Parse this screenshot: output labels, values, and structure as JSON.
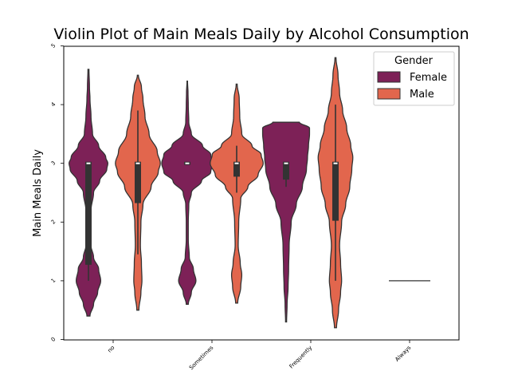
{
  "chart_data": {
    "type": "violin",
    "title": "Violin Plot of Main Meals Daily by Alcohol Consumption",
    "xlabel": "",
    "ylabel": "Main Meals Daily",
    "categories": [
      "no",
      "Sometimes",
      "Frequently",
      "Always"
    ],
    "ylim": [
      0,
      5
    ],
    "yticks": [
      "0",
      "1",
      "2",
      "3",
      "4",
      "5"
    ],
    "grid": false,
    "legend": {
      "title": "Gender",
      "position": "top-right",
      "entries": [
        {
          "name": "Female",
          "color": "#7d2157"
        },
        {
          "name": "Male",
          "color": "#e2664d"
        }
      ]
    },
    "series": [
      {
        "name": "Female",
        "color": "#7d2157",
        "violins": [
          {
            "category": "no",
            "range": [
              0.4,
              4.6
            ],
            "profile": [
              [
                0.4,
                0.03
              ],
              [
                0.6,
                0.1
              ],
              [
                0.8,
                0.18
              ],
              [
                1.0,
                0.24
              ],
              [
                1.2,
                0.2
              ],
              [
                1.4,
                0.1
              ],
              [
                1.6,
                0.05
              ],
              [
                1.9,
                0.04
              ],
              [
                2.2,
                0.05
              ],
              [
                2.5,
                0.1
              ],
              [
                2.7,
                0.22
              ],
              [
                2.9,
                0.36
              ],
              [
                3.0,
                0.38
              ],
              [
                3.1,
                0.34
              ],
              [
                3.3,
                0.2
              ],
              [
                3.5,
                0.08
              ],
              [
                3.8,
                0.05
              ],
              [
                4.1,
                0.03
              ],
              [
                4.3,
                0.02
              ],
              [
                4.6,
                0.01
              ]
            ],
            "q1": 1.3,
            "median": 3.0,
            "q3": 3.0,
            "whisker_low": 1.0,
            "whisker_high": 3.0
          },
          {
            "category": "Sometimes",
            "range": [
              0.6,
              4.4
            ],
            "profile": [
              [
                0.6,
                0.02
              ],
              [
                0.8,
                0.08
              ],
              [
                1.0,
                0.17
              ],
              [
                1.2,
                0.12
              ],
              [
                1.4,
                0.04
              ],
              [
                1.7,
                0.02
              ],
              [
                2.0,
                0.02
              ],
              [
                2.3,
                0.03
              ],
              [
                2.5,
                0.08
              ],
              [
                2.7,
                0.28
              ],
              [
                2.85,
                0.46
              ],
              [
                3.0,
                0.5
              ],
              [
                3.15,
                0.46
              ],
              [
                3.3,
                0.3
              ],
              [
                3.5,
                0.08
              ],
              [
                3.7,
                0.03
              ],
              [
                4.0,
                0.02
              ],
              [
                4.2,
                0.015
              ],
              [
                4.4,
                0.005
              ]
            ],
            "q1": 3.0,
            "median": 3.0,
            "q3": 3.0,
            "whisker_low": 3.0,
            "whisker_high": 3.0
          },
          {
            "category": "Frequently",
            "range": [
              0.3,
              3.7
            ],
            "profile": [
              [
                0.3,
                0.01
              ],
              [
                0.6,
                0.02
              ],
              [
                0.9,
                0.04
              ],
              [
                1.2,
                0.05
              ],
              [
                1.6,
                0.06
              ],
              [
                2.0,
                0.1
              ],
              [
                2.3,
                0.2
              ],
              [
                2.6,
                0.32
              ],
              [
                2.9,
                0.4
              ],
              [
                3.1,
                0.42
              ],
              [
                3.3,
                0.44
              ],
              [
                3.5,
                0.46
              ],
              [
                3.6,
                0.46
              ],
              [
                3.7,
                0.26
              ]
            ],
            "q1": 2.75,
            "median": 3.0,
            "q3": 3.0,
            "whisker_low": 2.6,
            "whisker_high": 3.0
          },
          {
            "category": "Always",
            "range": [
              1.0,
              1.0
            ],
            "degenerate": true
          }
        ]
      },
      {
        "name": "Male",
        "color": "#e2664d",
        "violins": [
          {
            "category": "no",
            "range": [
              0.5,
              4.5
            ],
            "profile": [
              [
                0.5,
                0.02
              ],
              [
                0.8,
                0.06
              ],
              [
                1.0,
                0.08
              ],
              [
                1.3,
                0.07
              ],
              [
                1.6,
                0.05
              ],
              [
                2.0,
                0.06
              ],
              [
                2.3,
                0.1
              ],
              [
                2.6,
                0.26
              ],
              [
                2.85,
                0.4
              ],
              [
                3.0,
                0.44
              ],
              [
                3.2,
                0.38
              ],
              [
                3.5,
                0.22
              ],
              [
                3.8,
                0.14
              ],
              [
                4.1,
                0.1
              ],
              [
                4.3,
                0.07
              ],
              [
                4.5,
                0.01
              ]
            ],
            "q1": 2.35,
            "median": 3.0,
            "q3": 3.0,
            "whisker_low": 1.45,
            "whisker_high": 3.9
          },
          {
            "category": "Sometimes",
            "range": [
              0.62,
              4.35
            ],
            "profile": [
              [
                0.62,
                0.02
              ],
              [
                0.9,
                0.08
              ],
              [
                1.1,
                0.1
              ],
              [
                1.3,
                0.07
              ],
              [
                1.6,
                0.03
              ],
              [
                2.0,
                0.04
              ],
              [
                2.4,
                0.08
              ],
              [
                2.6,
                0.22
              ],
              [
                2.8,
                0.42
              ],
              [
                3.0,
                0.52
              ],
              [
                3.15,
                0.48
              ],
              [
                3.3,
                0.3
              ],
              [
                3.5,
                0.1
              ],
              [
                3.8,
                0.06
              ],
              [
                4.1,
                0.05
              ],
              [
                4.35,
                0.01
              ]
            ],
            "q1": 2.8,
            "median": 3.0,
            "q3": 3.0,
            "whisker_low": 2.5,
            "whisker_high": 3.3
          },
          {
            "category": "Frequently",
            "range": [
              0.2,
              4.8
            ],
            "profile": [
              [
                0.2,
                0.02
              ],
              [
                0.5,
                0.06
              ],
              [
                0.8,
                0.1
              ],
              [
                1.0,
                0.12
              ],
              [
                1.3,
                0.1
              ],
              [
                1.6,
                0.08
              ],
              [
                2.0,
                0.12
              ],
              [
                2.3,
                0.2
              ],
              [
                2.6,
                0.28
              ],
              [
                2.9,
                0.32
              ],
              [
                3.1,
                0.34
              ],
              [
                3.3,
                0.3
              ],
              [
                3.6,
                0.22
              ],
              [
                3.9,
                0.14
              ],
              [
                4.2,
                0.08
              ],
              [
                4.5,
                0.05
              ],
              [
                4.8,
                0.01
              ]
            ],
            "q1": 2.05,
            "median": 3.0,
            "q3": 3.0,
            "whisker_low": 1.0,
            "whisker_high": 4.0
          }
        ]
      }
    ]
  }
}
